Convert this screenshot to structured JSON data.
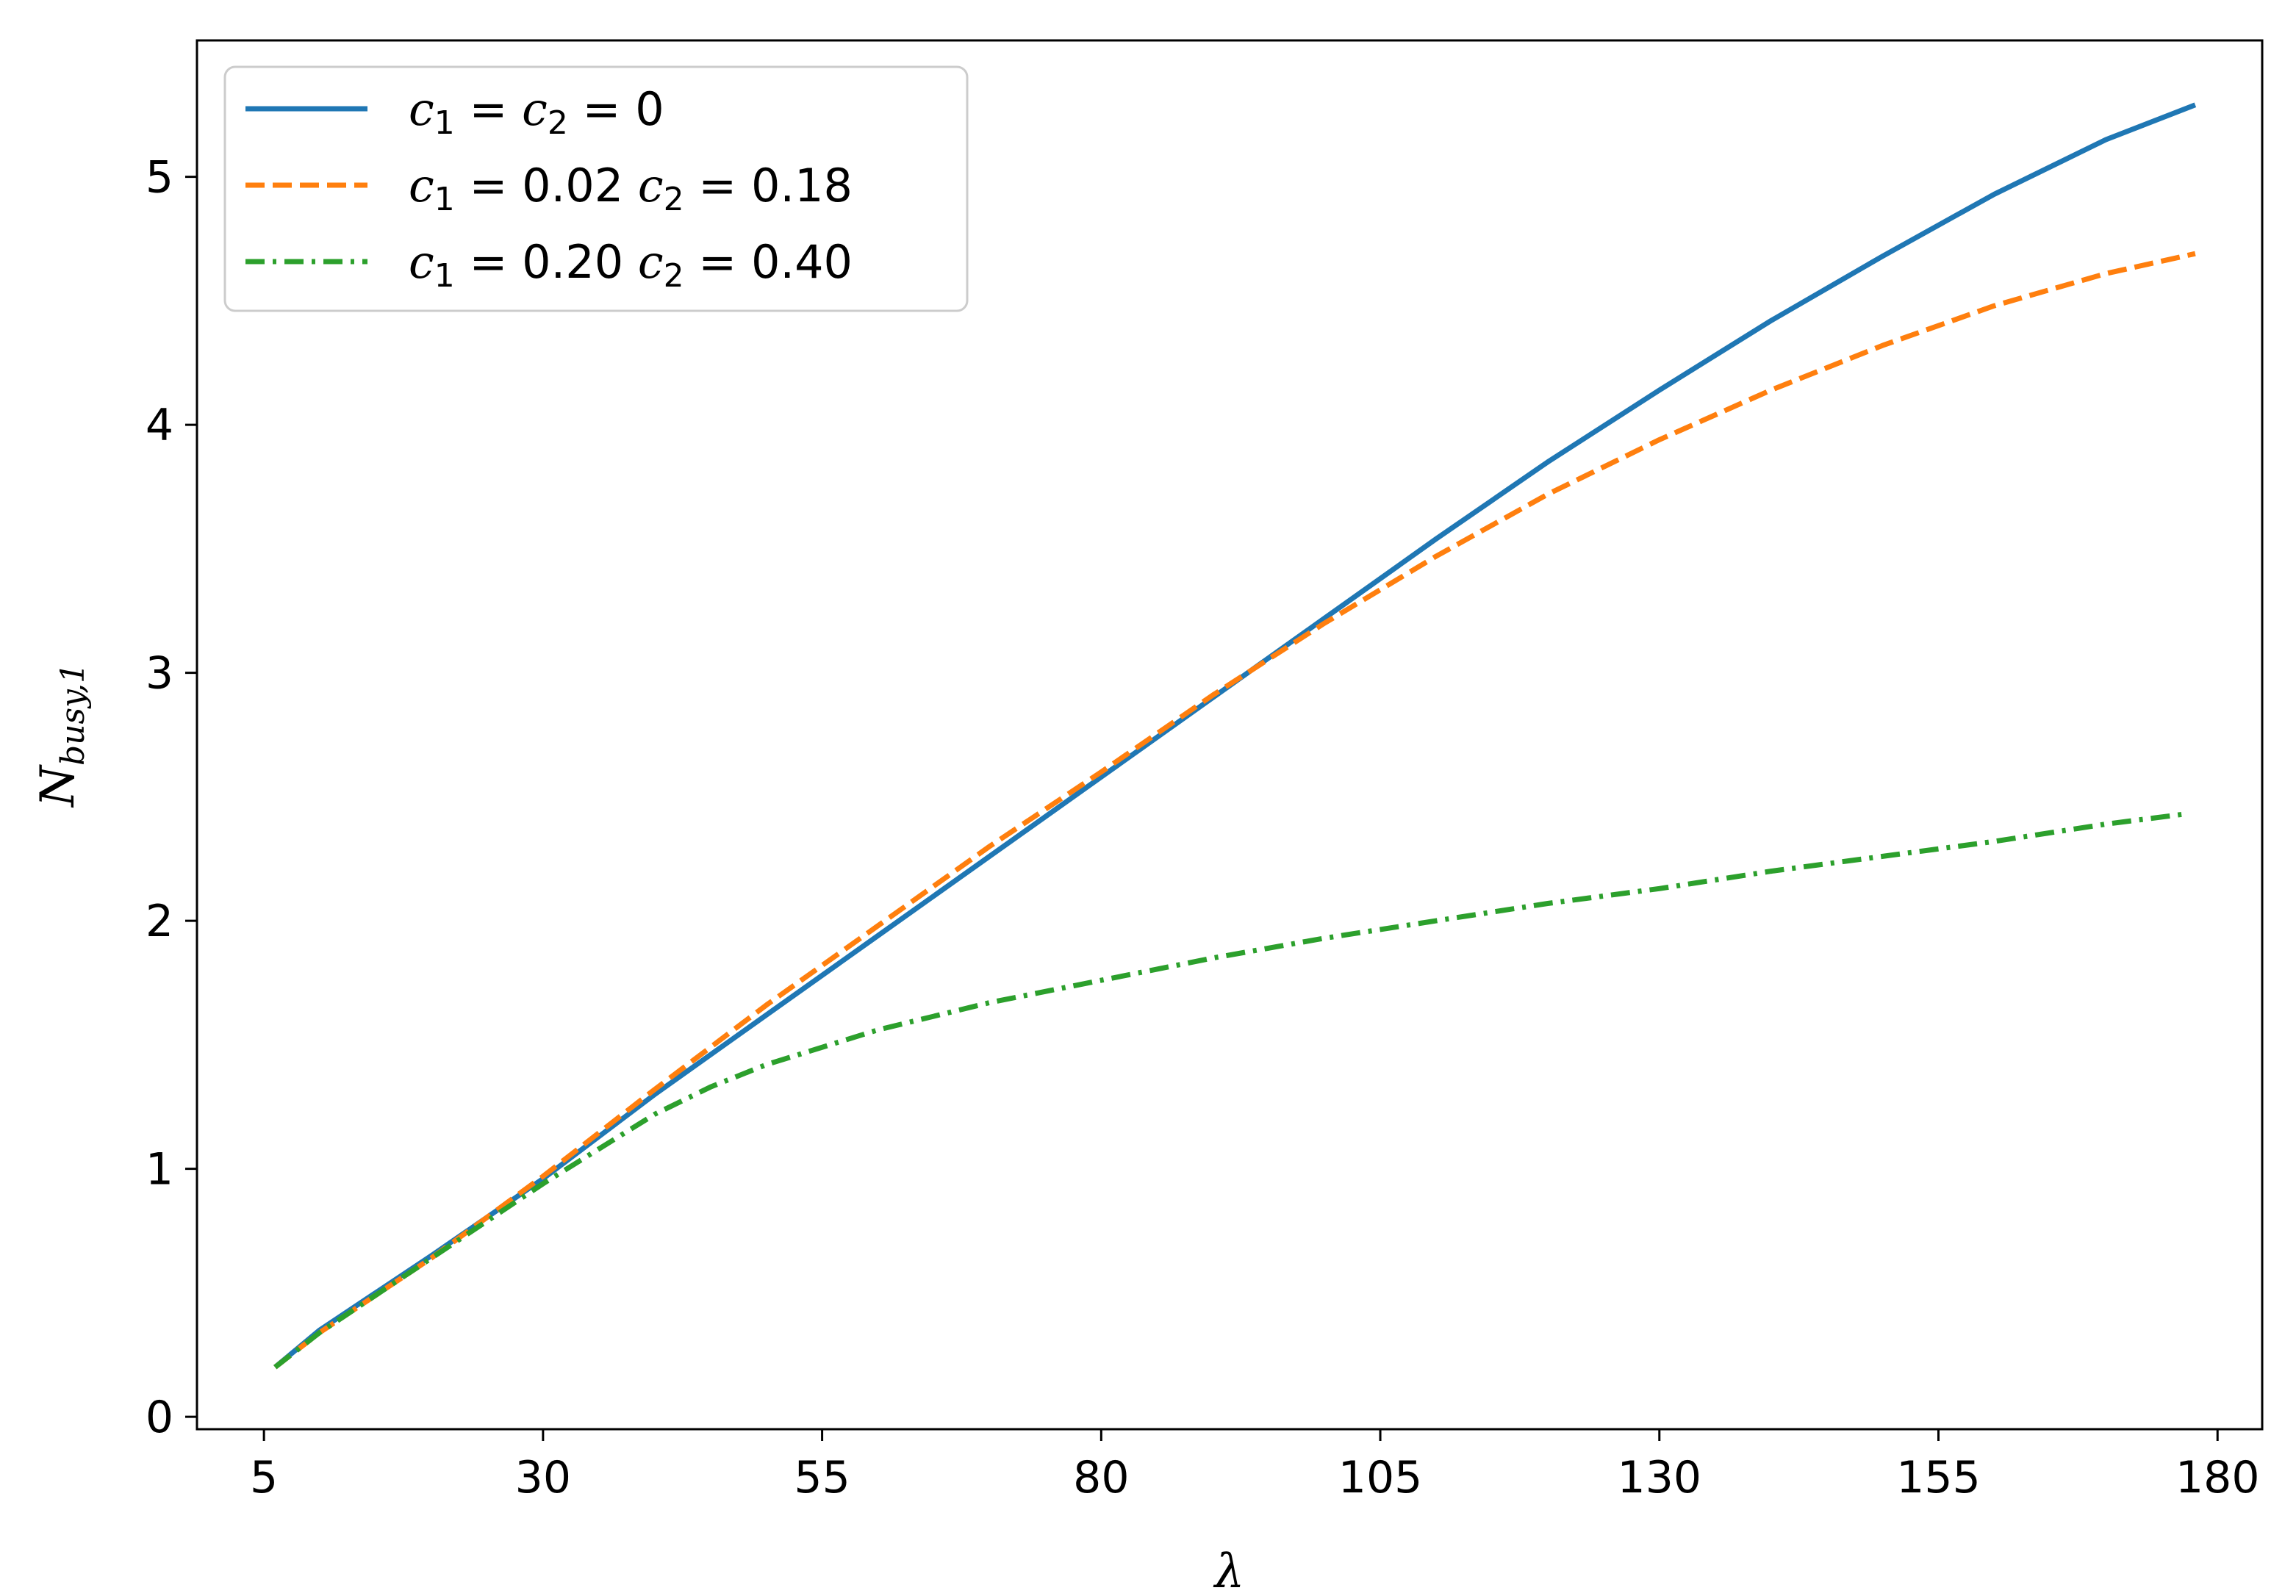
{
  "chart_data": {
    "type": "line",
    "xlabel": "λ",
    "ylabel": "N",
    "ylabel_sub": "busy,1",
    "xlim": [
      -1,
      184
    ],
    "ylim": [
      -0.05,
      5.55
    ],
    "x_ticks": [
      5,
      30,
      55,
      80,
      105,
      130,
      155,
      180
    ],
    "x_tick_labels": [
      "5",
      "30",
      "55",
      "80",
      "105",
      "130",
      "155",
      "180"
    ],
    "y_ticks": [
      0,
      1,
      2,
      3,
      4,
      5
    ],
    "y_tick_labels": [
      "0",
      "1",
      "2",
      "3",
      "4",
      "5"
    ],
    "grid": false,
    "legend_position": "upper-left",
    "series": [
      {
        "name": "c1 = c2 = 0",
        "legend": {
          "c1": "c",
          "s1": "1",
          "c2": "c",
          "s2": "2",
          "v1": "",
          "v2": "0"
        },
        "color": "#1f77b4",
        "style": "solid",
        "x": [
          6,
          10,
          20,
          30,
          40,
          50,
          60,
          70,
          80,
          90,
          100,
          110,
          120,
          130,
          140,
          150,
          160,
          170,
          178
        ],
        "y": [
          0.2,
          0.35,
          0.65,
          0.96,
          1.3,
          1.62,
          1.94,
          2.26,
          2.58,
          2.9,
          3.22,
          3.54,
          3.85,
          4.14,
          4.42,
          4.68,
          4.93,
          5.15,
          5.29
        ]
      },
      {
        "name": "c1 = 0.02 c2 = 0.18",
        "legend": {
          "c1": "c",
          "s1": "1",
          "c2": "c",
          "s2": "2",
          "v1": "0.02",
          "v2": "0.18"
        },
        "color": "#ff7f0e",
        "style": "dashed",
        "x": [
          6,
          10,
          20,
          30,
          40,
          50,
          60,
          70,
          80,
          90,
          100,
          110,
          120,
          130,
          140,
          150,
          160,
          170,
          178
        ],
        "y": [
          0.2,
          0.34,
          0.64,
          0.97,
          1.32,
          1.66,
          1.98,
          2.3,
          2.6,
          2.91,
          3.2,
          3.47,
          3.72,
          3.94,
          4.14,
          4.32,
          4.48,
          4.61,
          4.69
        ]
      },
      {
        "name": "c1 = 0.20 c2 = 0.40",
        "legend": {
          "c1": "c",
          "s1": "1",
          "c2": "c",
          "s2": "2",
          "v1": "0.20",
          "v2": "0.40"
        },
        "color": "#2ca02c",
        "style": "dashdot",
        "x": [
          6,
          10,
          20,
          30,
          35,
          40,
          45,
          50,
          60,
          70,
          80,
          90,
          100,
          110,
          120,
          130,
          140,
          150,
          160,
          170,
          177
        ],
        "y": [
          0.2,
          0.34,
          0.64,
          0.94,
          1.08,
          1.22,
          1.33,
          1.42,
          1.56,
          1.67,
          1.76,
          1.85,
          1.93,
          2.0,
          2.07,
          2.13,
          2.2,
          2.26,
          2.32,
          2.39,
          2.43
        ]
      }
    ]
  }
}
